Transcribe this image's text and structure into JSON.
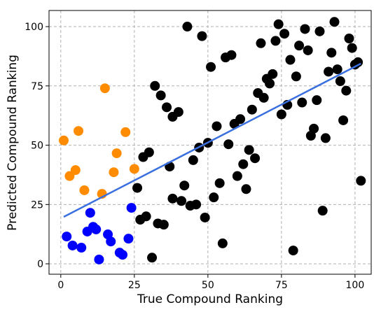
{
  "chart_data": {
    "type": "scatter",
    "x_label": "True Compound Ranking",
    "y_label": "Predicted Compound Ranking",
    "xlim": [
      -4,
      105.5
    ],
    "ylim": [
      -4.4,
      106.8
    ],
    "xticks": [
      0,
      25,
      50,
      75,
      100
    ],
    "yticks": [
      0,
      25,
      50,
      75,
      100
    ],
    "grid": true,
    "series": [
      {
        "color": "#ff8c00",
        "x": [
          1,
          3,
          5,
          6,
          8,
          14,
          15,
          18,
          19,
          22,
          25
        ],
        "values": [
          52,
          37,
          39.5,
          56,
          31,
          29.5,
          74,
          38.6,
          46.6,
          55.5,
          40
        ]
      },
      {
        "color": "#0000ff",
        "x": [
          2,
          4,
          7,
          9,
          10,
          11,
          12,
          13,
          16,
          17,
          20,
          21,
          23,
          24
        ],
        "values": [
          11.5,
          7.7,
          6.8,
          13.6,
          21.5,
          15.6,
          14.5,
          1.8,
          12.4,
          9.4,
          4.7,
          3.8,
          10.6,
          23.6
        ]
      },
      {
        "color": "#000000",
        "x": [
          26,
          27,
          29,
          30,
          28,
          31,
          32,
          33,
          34,
          35,
          36,
          37,
          38,
          40,
          38,
          41,
          42,
          43,
          44,
          45,
          46,
          47,
          48,
          49,
          50,
          51,
          52,
          53,
          54,
          55,
          56,
          57,
          58,
          59,
          60,
          61,
          62,
          63,
          64,
          65,
          66,
          67,
          68,
          69,
          70,
          71,
          72,
          73,
          74,
          75,
          76,
          77,
          78,
          79,
          80,
          81,
          82,
          83,
          84,
          85,
          86,
          87,
          88,
          89,
          90,
          91,
          92,
          93,
          94,
          95,
          96,
          97,
          98,
          99,
          100,
          101,
          102
        ],
        "values": [
          32,
          18.6,
          20,
          47,
          45,
          2.6,
          75,
          17,
          71,
          16.5,
          66,
          41,
          62,
          64,
          27.5,
          26.5,
          33,
          100,
          24.5,
          43.7,
          25,
          49,
          96,
          19.5,
          51,
          83,
          28,
          58,
          34,
          8.6,
          87,
          50.4,
          88,
          59,
          37,
          61,
          42,
          31.5,
          48,
          65,
          44.5,
          72,
          93,
          70,
          78,
          76,
          80,
          94,
          101,
          63,
          97,
          67,
          86,
          5.6,
          79,
          92,
          68,
          99,
          90,
          54,
          57,
          69,
          98,
          22.4,
          53,
          81,
          89,
          102,
          82,
          77,
          60.5,
          73,
          95,
          91,
          84,
          85,
          35
        ]
      }
    ],
    "fit": {
      "color": "#3a6fe0",
      "x": [
        1,
        102
      ],
      "values": [
        19.8,
        84.4
      ]
    }
  }
}
